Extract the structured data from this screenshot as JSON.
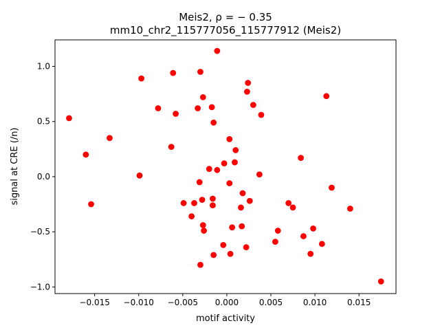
{
  "chart_data": {
    "type": "scatter",
    "title_line1": "Meis2, ρ = − 0.35",
    "title_line2": "mm10_chr2_115777056_115777912 (Meis2)",
    "xlabel": "motif activity",
    "ylabel": "signal at CRE (/n)",
    "xlim": [
      -0.0195,
      0.0192
    ],
    "ylim": [
      -1.06,
      1.24
    ],
    "xticks": [
      -0.015,
      -0.01,
      -0.005,
      0.0,
      0.005,
      0.01,
      0.015
    ],
    "xtick_labels": [
      "−0.015",
      "−0.010",
      "−0.005",
      "0.000",
      "0.005",
      "0.010",
      "0.015"
    ],
    "yticks": [
      -1.0,
      -0.5,
      0.0,
      0.5,
      1.0
    ],
    "ytick_labels": [
      "−1.0",
      "−0.5",
      "0.0",
      "0.5",
      "1.0"
    ],
    "grid": false,
    "marker_color": "#ff0000",
    "points": [
      {
        "x": -0.0179,
        "y": 0.53
      },
      {
        "x": -0.016,
        "y": 0.2
      },
      {
        "x": -0.0154,
        "y": -0.25
      },
      {
        "x": -0.0133,
        "y": 0.35
      },
      {
        "x": -0.0099,
        "y": 0.01
      },
      {
        "x": -0.0097,
        "y": 0.89
      },
      {
        "x": -0.0078,
        "y": 0.62
      },
      {
        "x": -0.0063,
        "y": 0.27
      },
      {
        "x": -0.0061,
        "y": 0.94
      },
      {
        "x": -0.0058,
        "y": 0.57
      },
      {
        "x": -0.0049,
        "y": -0.24
      },
      {
        "x": -0.004,
        "y": -0.36
      },
      {
        "x": -0.0037,
        "y": -0.24
      },
      {
        "x": -0.0033,
        "y": 0.62
      },
      {
        "x": -0.0031,
        "y": -0.05
      },
      {
        "x": -0.003,
        "y": 0.95
      },
      {
        "x": -0.003,
        "y": -0.8
      },
      {
        "x": -0.0028,
        "y": -0.21
      },
      {
        "x": -0.0027,
        "y": 0.72
      },
      {
        "x": -0.0027,
        "y": -0.44
      },
      {
        "x": -0.0026,
        "y": -0.49
      },
      {
        "x": -0.002,
        "y": 0.07
      },
      {
        "x": -0.0017,
        "y": 0.63
      },
      {
        "x": -0.0016,
        "y": -0.2
      },
      {
        "x": -0.0016,
        "y": -0.26
      },
      {
        "x": -0.0015,
        "y": 0.49
      },
      {
        "x": -0.0015,
        "y": -0.71
      },
      {
        "x": -0.0011,
        "y": 0.06
      },
      {
        "x": -0.0011,
        "y": 1.14
      },
      {
        "x": -0.0004,
        "y": -0.62
      },
      {
        "x": -0.0003,
        "y": 0.12
      },
      {
        "x": 0.0003,
        "y": 0.34
      },
      {
        "x": 0.0003,
        "y": -0.06
      },
      {
        "x": 0.0004,
        "y": -0.7
      },
      {
        "x": 0.0006,
        "y": -0.46
      },
      {
        "x": 0.0009,
        "y": 0.13
      },
      {
        "x": 0.001,
        "y": 0.24
      },
      {
        "x": 0.0016,
        "y": -0.28
      },
      {
        "x": 0.0017,
        "y": -0.45
      },
      {
        "x": 0.0018,
        "y": -0.15
      },
      {
        "x": 0.0022,
        "y": -0.64
      },
      {
        "x": 0.0023,
        "y": 0.77
      },
      {
        "x": 0.0024,
        "y": 0.85
      },
      {
        "x": 0.0026,
        "y": -0.22
      },
      {
        "x": 0.003,
        "y": 0.65
      },
      {
        "x": 0.0037,
        "y": 0.02
      },
      {
        "x": 0.0039,
        "y": 0.56
      },
      {
        "x": 0.0055,
        "y": -0.59
      },
      {
        "x": 0.0058,
        "y": -0.49
      },
      {
        "x": 0.007,
        "y": -0.24
      },
      {
        "x": 0.0075,
        "y": -0.28
      },
      {
        "x": 0.0084,
        "y": 0.17
      },
      {
        "x": 0.0087,
        "y": -0.54
      },
      {
        "x": 0.0095,
        "y": -0.7
      },
      {
        "x": 0.0098,
        "y": -0.47
      },
      {
        "x": 0.0108,
        "y": -0.61
      },
      {
        "x": 0.0113,
        "y": 0.73
      },
      {
        "x": 0.0119,
        "y": -0.1
      },
      {
        "x": 0.014,
        "y": -0.29
      },
      {
        "x": 0.0175,
        "y": -0.95
      }
    ]
  }
}
